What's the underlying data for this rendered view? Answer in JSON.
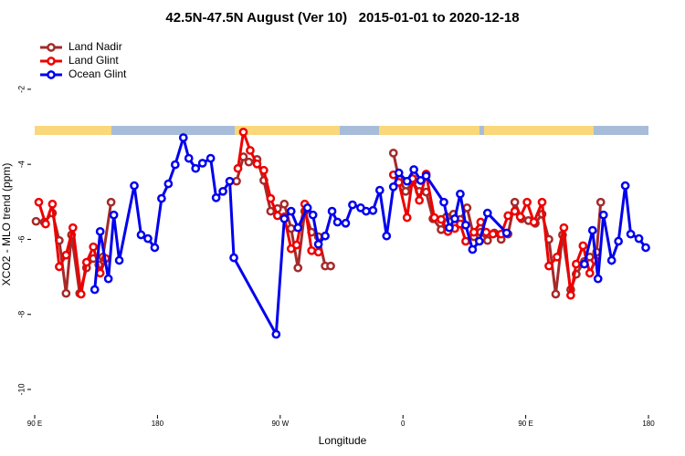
{
  "chart_data": {
    "type": "line",
    "title": "42.5N-47.5N August (Ver 10)   2015-01-01 to 2020-12-18",
    "xlabel": "Longitude",
    "ylabel": "XCO2 - MLO trend (ppm)",
    "xlim": [
      90,
      540
    ],
    "ylim": [
      -10.68,
      -0.52
    ],
    "xticks": [
      {
        "value": 90,
        "label": "90 E"
      },
      180,
      {
        "value": 270,
        "label": "90 W"
      },
      {
        "value": 360,
        "label": "0"
      },
      {
        "value": 450,
        "label": "90 E"
      },
      {
        "value": 540,
        "label": "180"
      }
    ],
    "yticks": [
      -2,
      -4,
      -6,
      -8,
      -10
    ],
    "legend": "top-left",
    "series": [
      {
        "name": "Land Nadir",
        "color": "#a52a2a",
        "x": [
          91,
          97,
          103,
          108,
          113,
          117,
          123,
          128,
          133,
          137,
          140,
          146,
          190,
          238,
          243,
          247,
          253,
          258,
          263,
          268,
          273,
          278,
          283,
          288,
          293,
          298,
          303,
          307,
          330,
          353,
          357,
          362,
          367,
          372,
          377,
          382,
          388,
          392,
          397,
          402,
          407,
          412,
          417,
          422,
          427,
          432,
          437,
          442,
          447,
          452,
          457,
          462,
          467,
          472,
          477,
          483,
          487,
          493,
          497,
          502,
          505
        ],
        "values": [
          -5.52,
          -5.54,
          -5.3,
          -6.03,
          -7.44,
          -5.88,
          -7.44,
          -6.76,
          -6.51,
          -6.68,
          -6.47,
          -5.01,
          null,
          -4.45,
          -3.8,
          -3.94,
          -3.87,
          -4.43,
          -5.25,
          -5.18,
          -5.06,
          -5.71,
          -6.76,
          -5.25,
          -5.81,
          -5.93,
          -6.71,
          -6.71,
          null,
          -3.7,
          -4.38,
          -4.72,
          -4.48,
          -4.72,
          -4.74,
          -5.45,
          -5.74,
          -5.4,
          -5.33,
          -5.47,
          -5.16,
          -5.93,
          -5.81,
          -6.03,
          -5.83,
          -6.0,
          -5.86,
          -5.01,
          -5.45,
          -5.5,
          -5.57,
          -5.33,
          -6.0,
          -7.46,
          -5.88,
          -7.34,
          -6.93,
          -6.59,
          -6.47,
          -6.34,
          -5.01
        ]
      },
      {
        "name": "Land Glint",
        "color": "#ee0000",
        "x": [
          93,
          98,
          103,
          108,
          113,
          118,
          124,
          128,
          133,
          138,
          142,
          190,
          239,
          243,
          248,
          253,
          258,
          263,
          268,
          273,
          278,
          282,
          288,
          293,
          298,
          330,
          353,
          357,
          363,
          367,
          372,
          377,
          383,
          388,
          393,
          398,
          402,
          406,
          412,
          417,
          421,
          426,
          432,
          437,
          442,
          446,
          451,
          456,
          462,
          467,
          473,
          478,
          483,
          487,
          492,
          497,
          501
        ],
        "values": [
          -5.01,
          -5.59,
          -5.06,
          -6.73,
          -6.42,
          -5.69,
          -7.46,
          -6.61,
          -6.2,
          -6.9,
          -6.51,
          null,
          -4.11,
          -3.14,
          -3.63,
          -3.99,
          -4.16,
          -4.91,
          -5.37,
          -5.4,
          -6.25,
          -6.15,
          -5.06,
          -6.3,
          -6.34,
          null,
          -4.28,
          -4.48,
          -5.42,
          -4.38,
          -4.96,
          -4.26,
          -5.42,
          -5.47,
          -5.79,
          -5.71,
          -5.59,
          -6.05,
          -5.81,
          -5.54,
          -5.81,
          -5.86,
          -5.86,
          -5.37,
          -5.25,
          -5.4,
          -5.01,
          -5.54,
          -5.01,
          -6.71,
          -6.47,
          -5.69,
          -7.49,
          -6.66,
          -6.17,
          -6.9,
          -6.56
        ]
      },
      {
        "name": "Ocean Glint",
        "color": "#0000ee",
        "x": [
          134,
          138,
          144,
          148,
          152,
          163,
          168,
          173,
          178,
          183,
          188,
          193,
          199,
          203,
          208,
          213,
          219,
          223,
          228,
          233,
          236,
          267,
          273,
          278,
          283,
          290,
          294,
          298,
          303,
          308,
          312,
          318,
          323,
          329,
          333,
          338,
          343,
          348,
          353,
          357,
          363,
          368,
          373,
          377,
          390,
          394,
          398,
          402,
          406,
          411,
          416,
          422,
          436,
          465,
          493,
          499,
          503,
          507,
          513,
          518,
          523,
          527,
          533,
          538
        ],
        "values": [
          -7.34,
          -5.79,
          -7.05,
          -5.35,
          -6.56,
          -4.57,
          -5.88,
          -5.98,
          -6.22,
          -4.91,
          -4.52,
          -4.01,
          -3.29,
          -3.84,
          -4.11,
          -3.97,
          -3.84,
          -4.89,
          -4.72,
          -4.45,
          -6.49,
          -8.53,
          -5.45,
          -5.25,
          -5.69,
          -5.16,
          -5.35,
          -6.13,
          -5.91,
          -5.25,
          -5.54,
          -5.57,
          -5.08,
          -5.16,
          -5.25,
          -5.23,
          -4.69,
          -5.91,
          -4.6,
          -4.23,
          -4.45,
          -4.14,
          -4.43,
          -4.31,
          -5.01,
          -5.69,
          -5.45,
          -4.79,
          -5.62,
          -6.27,
          -6.05,
          -5.3,
          -5.83,
          null,
          -6.66,
          -5.76,
          -7.05,
          -5.35,
          -6.56,
          -6.05,
          -4.57,
          -5.86,
          -5.98,
          -6.22
        ]
      }
    ]
  }
}
